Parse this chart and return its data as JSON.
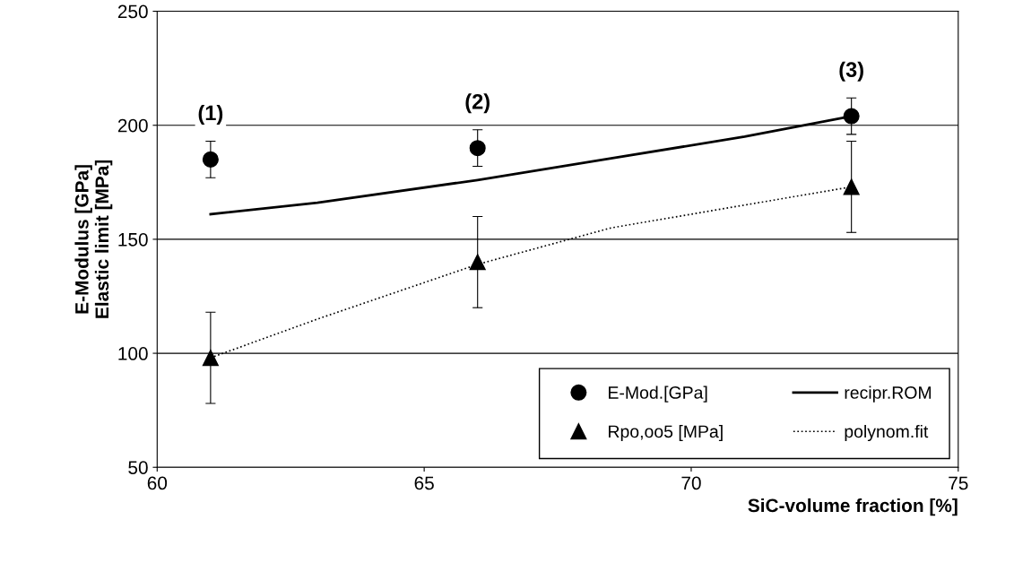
{
  "chart_data": {
    "type": "scatter",
    "xlabel": "SiC-volume fraction [%]",
    "ylabel": "E-Modulus [GPa]\nElastic limit [MPa]",
    "xlim": [
      60,
      75
    ],
    "xticks": [
      60,
      65,
      70,
      75
    ],
    "ylim": [
      50,
      250
    ],
    "yticks": [
      50,
      100,
      150,
      200,
      250
    ],
    "grid": "y",
    "legend": "bottom right",
    "series": [
      {
        "name": "E-Mod.[GPa]",
        "type": "scatter",
        "marker": "circle",
        "color": "#000000",
        "x": [
          61,
          66,
          73
        ],
        "values": [
          185,
          190,
          204
        ],
        "errors": [
          8,
          8,
          8
        ]
      },
      {
        "name": "Rpo,oo5 [MPa]",
        "type": "scatter",
        "marker": "triangle",
        "color": "#000000",
        "x": [
          61,
          66,
          73
        ],
        "values": [
          98,
          140,
          173
        ],
        "errors": [
          20,
          20,
          20
        ]
      },
      {
        "name": "recipr.ROM",
        "type": "line",
        "line_style": "solid",
        "color": "#000000",
        "x": [
          61,
          63,
          66,
          68.5,
          71,
          73
        ],
        "values": [
          161,
          166,
          176,
          185.5,
          195,
          204
        ]
      },
      {
        "name": "polynom.fit",
        "type": "line",
        "line_style": "dotted",
        "color": "#000000",
        "x": [
          61,
          63,
          66,
          68.5,
          71,
          73
        ],
        "values": [
          98,
          115,
          139,
          155,
          165,
          173
        ]
      }
    ],
    "annotations": [
      {
        "text": "(1)",
        "x": 61,
        "y": 185
      },
      {
        "text": "(2)",
        "x": 66,
        "y": 190
      },
      {
        "text": "(3)",
        "x": 73,
        "y": 204
      }
    ]
  }
}
